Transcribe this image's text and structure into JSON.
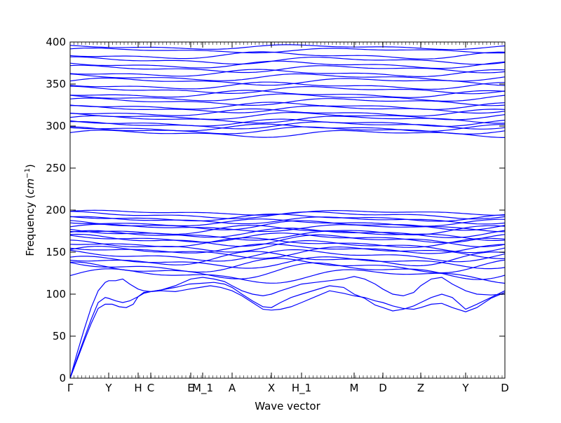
{
  "chart_data": {
    "type": "line",
    "title": "",
    "xlabel": "Wave vector",
    "ylabel": "Frequency ($cm^{-1}$)",
    "ylabel_parts": {
      "main": "Frequency (",
      "symbol": "cm",
      "sup": "−1",
      "close": ")"
    },
    "ylim": [
      0,
      400
    ],
    "yticks": [
      0,
      50,
      100,
      150,
      200,
      250,
      300,
      350,
      400
    ],
    "grid": false,
    "legend": "none",
    "line_color": "#0000ff",
    "x_high_symmetry_points": [
      {
        "label": "Γ",
        "x": 0
      },
      {
        "label": "Y",
        "x": 55
      },
      {
        "label": "H",
        "x": 97
      },
      {
        "label": "C",
        "x": 115
      },
      {
        "label": "E",
        "x": 172
      },
      {
        "label": "M_1",
        "x": 189
      },
      {
        "label": "A",
        "x": 231
      },
      {
        "label": "X",
        "x": 287
      },
      {
        "label": "H_1",
        "x": 330
      },
      {
        "label": "M",
        "x": 405
      },
      {
        "label": "D",
        "x": 446
      },
      {
        "label": "Z",
        "x": 500
      },
      {
        "label": "Y",
        "x": 564
      },
      {
        "label": "D",
        "x": 620
      }
    ],
    "x_range": [
      0,
      620
    ],
    "acoustic_branches": [
      {
        "name": "acoustic-1",
        "x": [
          0,
          10,
          20,
          30,
          40,
          50,
          60,
          70,
          80,
          90,
          97,
          105,
          115,
          130,
          150,
          170,
          185,
          200,
          215,
          231,
          245,
          260,
          275,
          287,
          300,
          315,
          330,
          350,
          370,
          390,
          405,
          420,
          435,
          446,
          460,
          475,
          490,
          500,
          515,
          530,
          545,
          564,
          580,
          600,
          620
        ],
        "y": [
          0,
          22,
          44,
          65,
          83,
          88,
          88,
          85,
          84,
          88,
          97,
          102,
          103,
          104,
          103,
          106,
          108,
          110,
          108,
          104,
          98,
          90,
          82,
          81,
          82,
          85,
          90,
          97,
          104,
          101,
          98,
          96,
          92,
          90,
          86,
          83,
          82,
          84,
          88,
          89,
          84,
          79,
          84,
          95,
          102
        ]
      },
      {
        "name": "acoustic-2",
        "x": [
          0,
          10,
          20,
          30,
          40,
          50,
          55,
          65,
          75,
          85,
          97,
          105,
          115,
          130,
          150,
          170,
          189,
          205,
          220,
          231,
          245,
          260,
          275,
          287,
          300,
          315,
          330,
          350,
          370,
          390,
          405,
          420,
          435,
          446,
          460,
          475,
          490,
          500,
          515,
          530,
          545,
          564,
          580,
          600,
          620
        ],
        "y": [
          0,
          24,
          47,
          70,
          90,
          96,
          95,
          92,
          90,
          92,
          97,
          101,
          103,
          105,
          108,
          112,
          113,
          114,
          112,
          108,
          100,
          92,
          85,
          84,
          90,
          96,
          100,
          105,
          110,
          108,
          100,
          95,
          87,
          84,
          80,
          82,
          86,
          90,
          96,
          100,
          96,
          82,
          88,
          96,
          104
        ]
      },
      {
        "name": "acoustic-3",
        "x": [
          0,
          10,
          20,
          30,
          40,
          50,
          55,
          65,
          75,
          85,
          97,
          105,
          115,
          130,
          150,
          172,
          189,
          205,
          220,
          231,
          245,
          260,
          275,
          287,
          300,
          315,
          330,
          350,
          370,
          390,
          405,
          420,
          435,
          446,
          460,
          475,
          490,
          500,
          515,
          530,
          545,
          564,
          580,
          600,
          620
        ],
        "y": [
          0,
          30,
          58,
          84,
          104,
          114,
          116,
          116,
          118,
          112,
          106,
          104,
          103,
          105,
          110,
          118,
          120,
          118,
          115,
          110,
          104,
          100,
          98,
          100,
          104,
          108,
          112,
          114,
          116,
          118,
          121,
          118,
          112,
          106,
          100,
          98,
          102,
          110,
          118,
          120,
          112,
          104,
          100,
          99,
          100
        ]
      }
    ],
    "optical_branches_low": [
      {
        "name": "band-low-1",
        "base": 122,
        "amp": 6,
        "phase": 0.0
      },
      {
        "name": "band-low-2",
        "base": 128,
        "amp": 7,
        "phase": 1.0
      },
      {
        "name": "band-low-3",
        "base": 134,
        "amp": 6,
        "phase": 2.1
      },
      {
        "name": "band-low-4",
        "base": 138,
        "amp": 5,
        "phase": 0.7
      },
      {
        "name": "band-low-5",
        "base": 142,
        "amp": 6,
        "phase": 2.8
      },
      {
        "name": "band-low-6",
        "base": 146,
        "amp": 5,
        "phase": 1.6
      },
      {
        "name": "band-low-7",
        "base": 150,
        "amp": 5,
        "phase": 0.3
      },
      {
        "name": "band-low-8",
        "base": 154,
        "amp": 4,
        "phase": 2.4
      },
      {
        "name": "band-low-9",
        "base": 157,
        "amp": 5,
        "phase": 1.2
      },
      {
        "name": "band-low-10",
        "base": 161,
        "amp": 4,
        "phase": 3.0
      },
      {
        "name": "band-low-11",
        "base": 164,
        "amp": 5,
        "phase": 0.9
      },
      {
        "name": "band-low-12",
        "base": 167,
        "amp": 4,
        "phase": 2.0
      },
      {
        "name": "band-low-13",
        "base": 170,
        "amp": 4,
        "phase": 0.5
      },
      {
        "name": "band-low-14",
        "base": 173,
        "amp": 4,
        "phase": 1.8
      },
      {
        "name": "band-low-15",
        "base": 176,
        "amp": 4,
        "phase": 2.9
      },
      {
        "name": "band-low-16",
        "base": 179,
        "amp": 3,
        "phase": 0.2
      },
      {
        "name": "band-low-17",
        "base": 182,
        "amp": 4,
        "phase": 1.4
      },
      {
        "name": "band-low-18",
        "base": 185,
        "amp": 3,
        "phase": 2.6
      },
      {
        "name": "band-low-19",
        "base": 188,
        "amp": 3,
        "phase": 0.8
      },
      {
        "name": "band-low-20",
        "base": 191,
        "amp": 3,
        "phase": 2.2
      },
      {
        "name": "band-low-21",
        "base": 194,
        "amp": 3,
        "phase": 1.1
      },
      {
        "name": "band-low-22",
        "base": 197,
        "amp": 2,
        "phase": 0.4
      }
    ],
    "optical_branches_high": [
      {
        "name": "band-high-1",
        "base": 291,
        "amp": 3,
        "phase": 0.2
      },
      {
        "name": "band-high-2",
        "base": 295,
        "amp": 3,
        "phase": 1.3
      },
      {
        "name": "band-high-3",
        "base": 298,
        "amp": 3,
        "phase": 2.5
      },
      {
        "name": "band-high-4",
        "base": 301,
        "amp": 3,
        "phase": 0.9
      },
      {
        "name": "band-high-5",
        "base": 304,
        "amp": 3,
        "phase": 2.0
      },
      {
        "name": "band-high-6",
        "base": 308,
        "amp": 3,
        "phase": 0.4
      },
      {
        "name": "band-high-7",
        "base": 312,
        "amp": 3,
        "phase": 1.7
      },
      {
        "name": "band-high-8",
        "base": 316,
        "amp": 3,
        "phase": 2.8
      },
      {
        "name": "band-high-9",
        "base": 320,
        "amp": 3,
        "phase": 1.0
      },
      {
        "name": "band-high-10",
        "base": 324,
        "amp": 3,
        "phase": 2.3
      },
      {
        "name": "band-high-11",
        "base": 329,
        "amp": 3,
        "phase": 0.6
      },
      {
        "name": "band-high-12",
        "base": 334,
        "amp": 3,
        "phase": 1.9
      },
      {
        "name": "band-high-13",
        "base": 338,
        "amp": 3,
        "phase": 3.0
      },
      {
        "name": "band-high-14",
        "base": 343,
        "amp": 3,
        "phase": 1.2
      },
      {
        "name": "band-high-15",
        "base": 348,
        "amp": 3,
        "phase": 2.4
      },
      {
        "name": "band-high-16",
        "base": 353,
        "amp": 3,
        "phase": 0.1
      },
      {
        "name": "band-high-17",
        "base": 358,
        "amp": 3,
        "phase": 1.5
      },
      {
        "name": "band-high-18",
        "base": 363,
        "amp": 3,
        "phase": 2.7
      },
      {
        "name": "band-high-19",
        "base": 368,
        "amp": 3,
        "phase": 0.8
      },
      {
        "name": "band-high-20",
        "base": 373,
        "amp": 3,
        "phase": 2.1
      },
      {
        "name": "band-high-21",
        "base": 378,
        "amp": 3,
        "phase": 1.0
      },
      {
        "name": "band-high-22",
        "base": 384,
        "amp": 3,
        "phase": 2.6
      },
      {
        "name": "band-high-23",
        "base": 390,
        "amp": 2,
        "phase": 0.5
      },
      {
        "name": "band-high-24",
        "base": 394,
        "amp": 2,
        "phase": 1.8
      }
    ]
  }
}
